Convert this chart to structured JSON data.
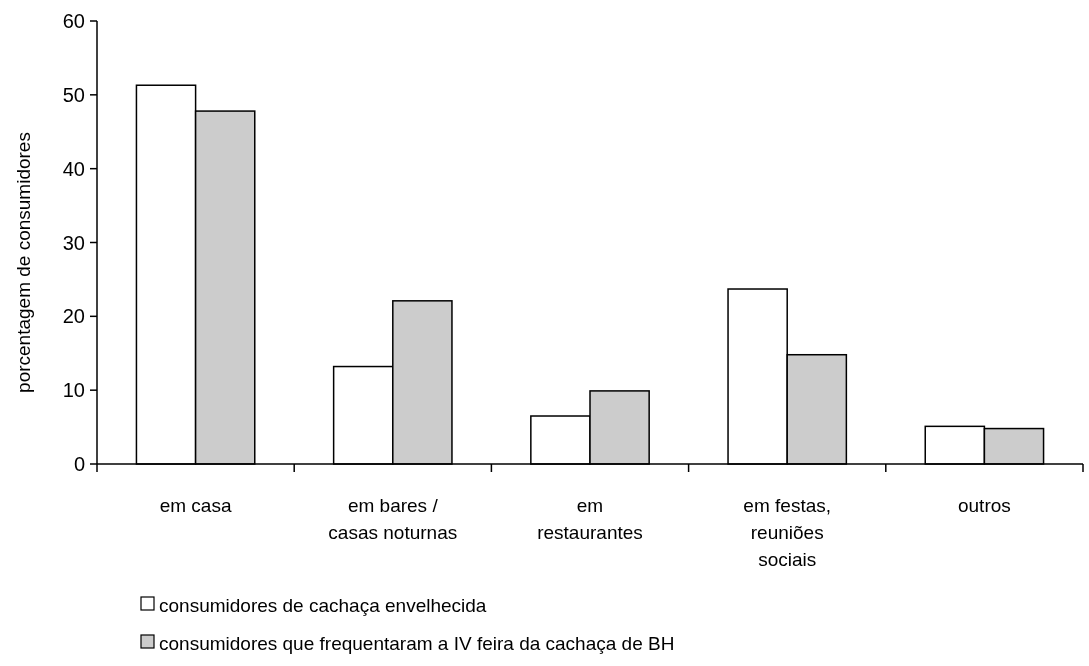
{
  "chart_data": {
    "type": "bar",
    "ylabel": "porcentagem de consumidores",
    "categories": [
      "em casa",
      "em bares / casas noturnas",
      "em restaurantes",
      "em festas, reuniões sociais",
      "outros"
    ],
    "series": [
      {
        "name": "consumidores de cachaça envelhecida",
        "color": "#ffffff",
        "values": [
          51.3,
          13.2,
          6.5,
          23.7,
          5.1
        ]
      },
      {
        "name": "consumidores que frequentaram a IV feira da cachaça de BH",
        "color": "#cccccc",
        "values": [
          47.8,
          22.1,
          9.9,
          14.8,
          4.8
        ]
      }
    ],
    "ylim": [
      0,
      60
    ],
    "yticks": [
      0,
      10,
      20,
      30,
      40,
      50,
      60
    ],
    "grid": false,
    "legend": "bottom left"
  }
}
